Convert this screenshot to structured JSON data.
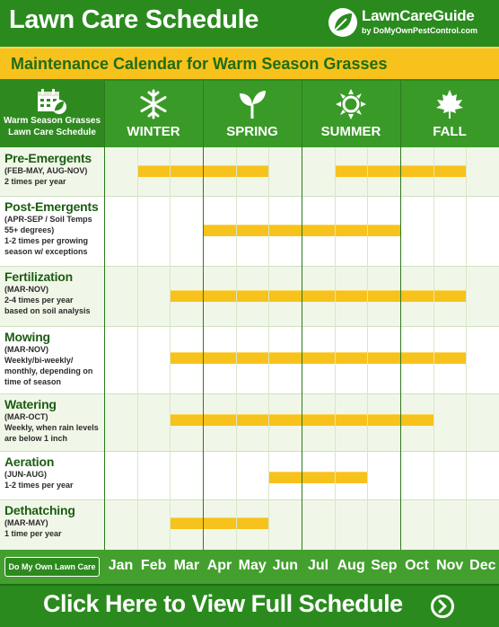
{
  "header": {
    "title": "Lawn Care Schedule",
    "logo_main": "LawnCareGuide",
    "logo_sub": "by DoMyOwnPestControl.com"
  },
  "banner": {
    "text": "Maintenance Calendar for Warm Season Grasses"
  },
  "corner": {
    "line1": "Warm Season Grasses",
    "line2": "Lawn Care Schedule"
  },
  "seasons": [
    {
      "name": "WINTER",
      "icon": "snowflake-icon"
    },
    {
      "name": "SPRING",
      "icon": "sprout-icon"
    },
    {
      "name": "SUMMER",
      "icon": "sun-icon"
    },
    {
      "name": "FALL",
      "icon": "maple-leaf-icon"
    }
  ],
  "tasks": [
    {
      "title": "Pre-Emergents",
      "lines": [
        "(FEB-MAY, AUG-NOV)",
        "2 times per year"
      ],
      "active_months": [
        "Feb",
        "Mar",
        "Apr",
        "May",
        "Aug",
        "Sep",
        "Oct",
        "Nov"
      ]
    },
    {
      "title": "Post-Emergents",
      "lines": [
        "(APR-SEP / Soil Temps",
        "55+ degrees)",
        "1-2 times per growing",
        "season w/ exceptions"
      ],
      "active_months": [
        "Apr",
        "May",
        "Jun",
        "Jul",
        "Aug",
        "Sep"
      ]
    },
    {
      "title": "Fertilization",
      "lines": [
        "(MAR-NOV)",
        "2-4 times per year",
        "based on soil analysis"
      ],
      "active_months": [
        "Mar",
        "Apr",
        "May",
        "Jun",
        "Jul",
        "Aug",
        "Sep",
        "Oct",
        "Nov"
      ]
    },
    {
      "title": "Mowing",
      "lines": [
        "(MAR-NOV)",
        "Weekly/bi-weekly/",
        "monthly, depending on",
        "time of season"
      ],
      "active_months": [
        "Mar",
        "Apr",
        "May",
        "Jun",
        "Jul",
        "Aug",
        "Sep",
        "Oct",
        "Nov"
      ]
    },
    {
      "title": "Watering",
      "lines": [
        "(MAR-OCT)",
        "Weekly, when rain levels",
        "are below 1 inch"
      ],
      "active_months": [
        "Mar",
        "Apr",
        "May",
        "Jun",
        "Jul",
        "Aug",
        "Sep",
        "Oct"
      ]
    },
    {
      "title": "Aeration",
      "lines": [
        "(JUN-AUG)",
        "1-2 times per year"
      ],
      "active_months": [
        "Jun",
        "Jul",
        "Aug"
      ]
    },
    {
      "title": "Dethatching",
      "lines": [
        "(MAR-MAY)",
        "1 time per year"
      ],
      "active_months": [
        "Mar",
        "Apr",
        "May"
      ]
    }
  ],
  "months": [
    "Jan",
    "Feb",
    "Mar",
    "Apr",
    "May",
    "Jun",
    "Jul",
    "Aug",
    "Sep",
    "Oct",
    "Nov",
    "Dec"
  ],
  "footer": {
    "dmy_button": "Do My Own Lawn Care",
    "cta": "Click Here to View Full Schedule"
  },
  "colors": {
    "green": "#2a8a1e",
    "yellow": "#f8c21c",
    "light_green": "#f1f7e8"
  }
}
